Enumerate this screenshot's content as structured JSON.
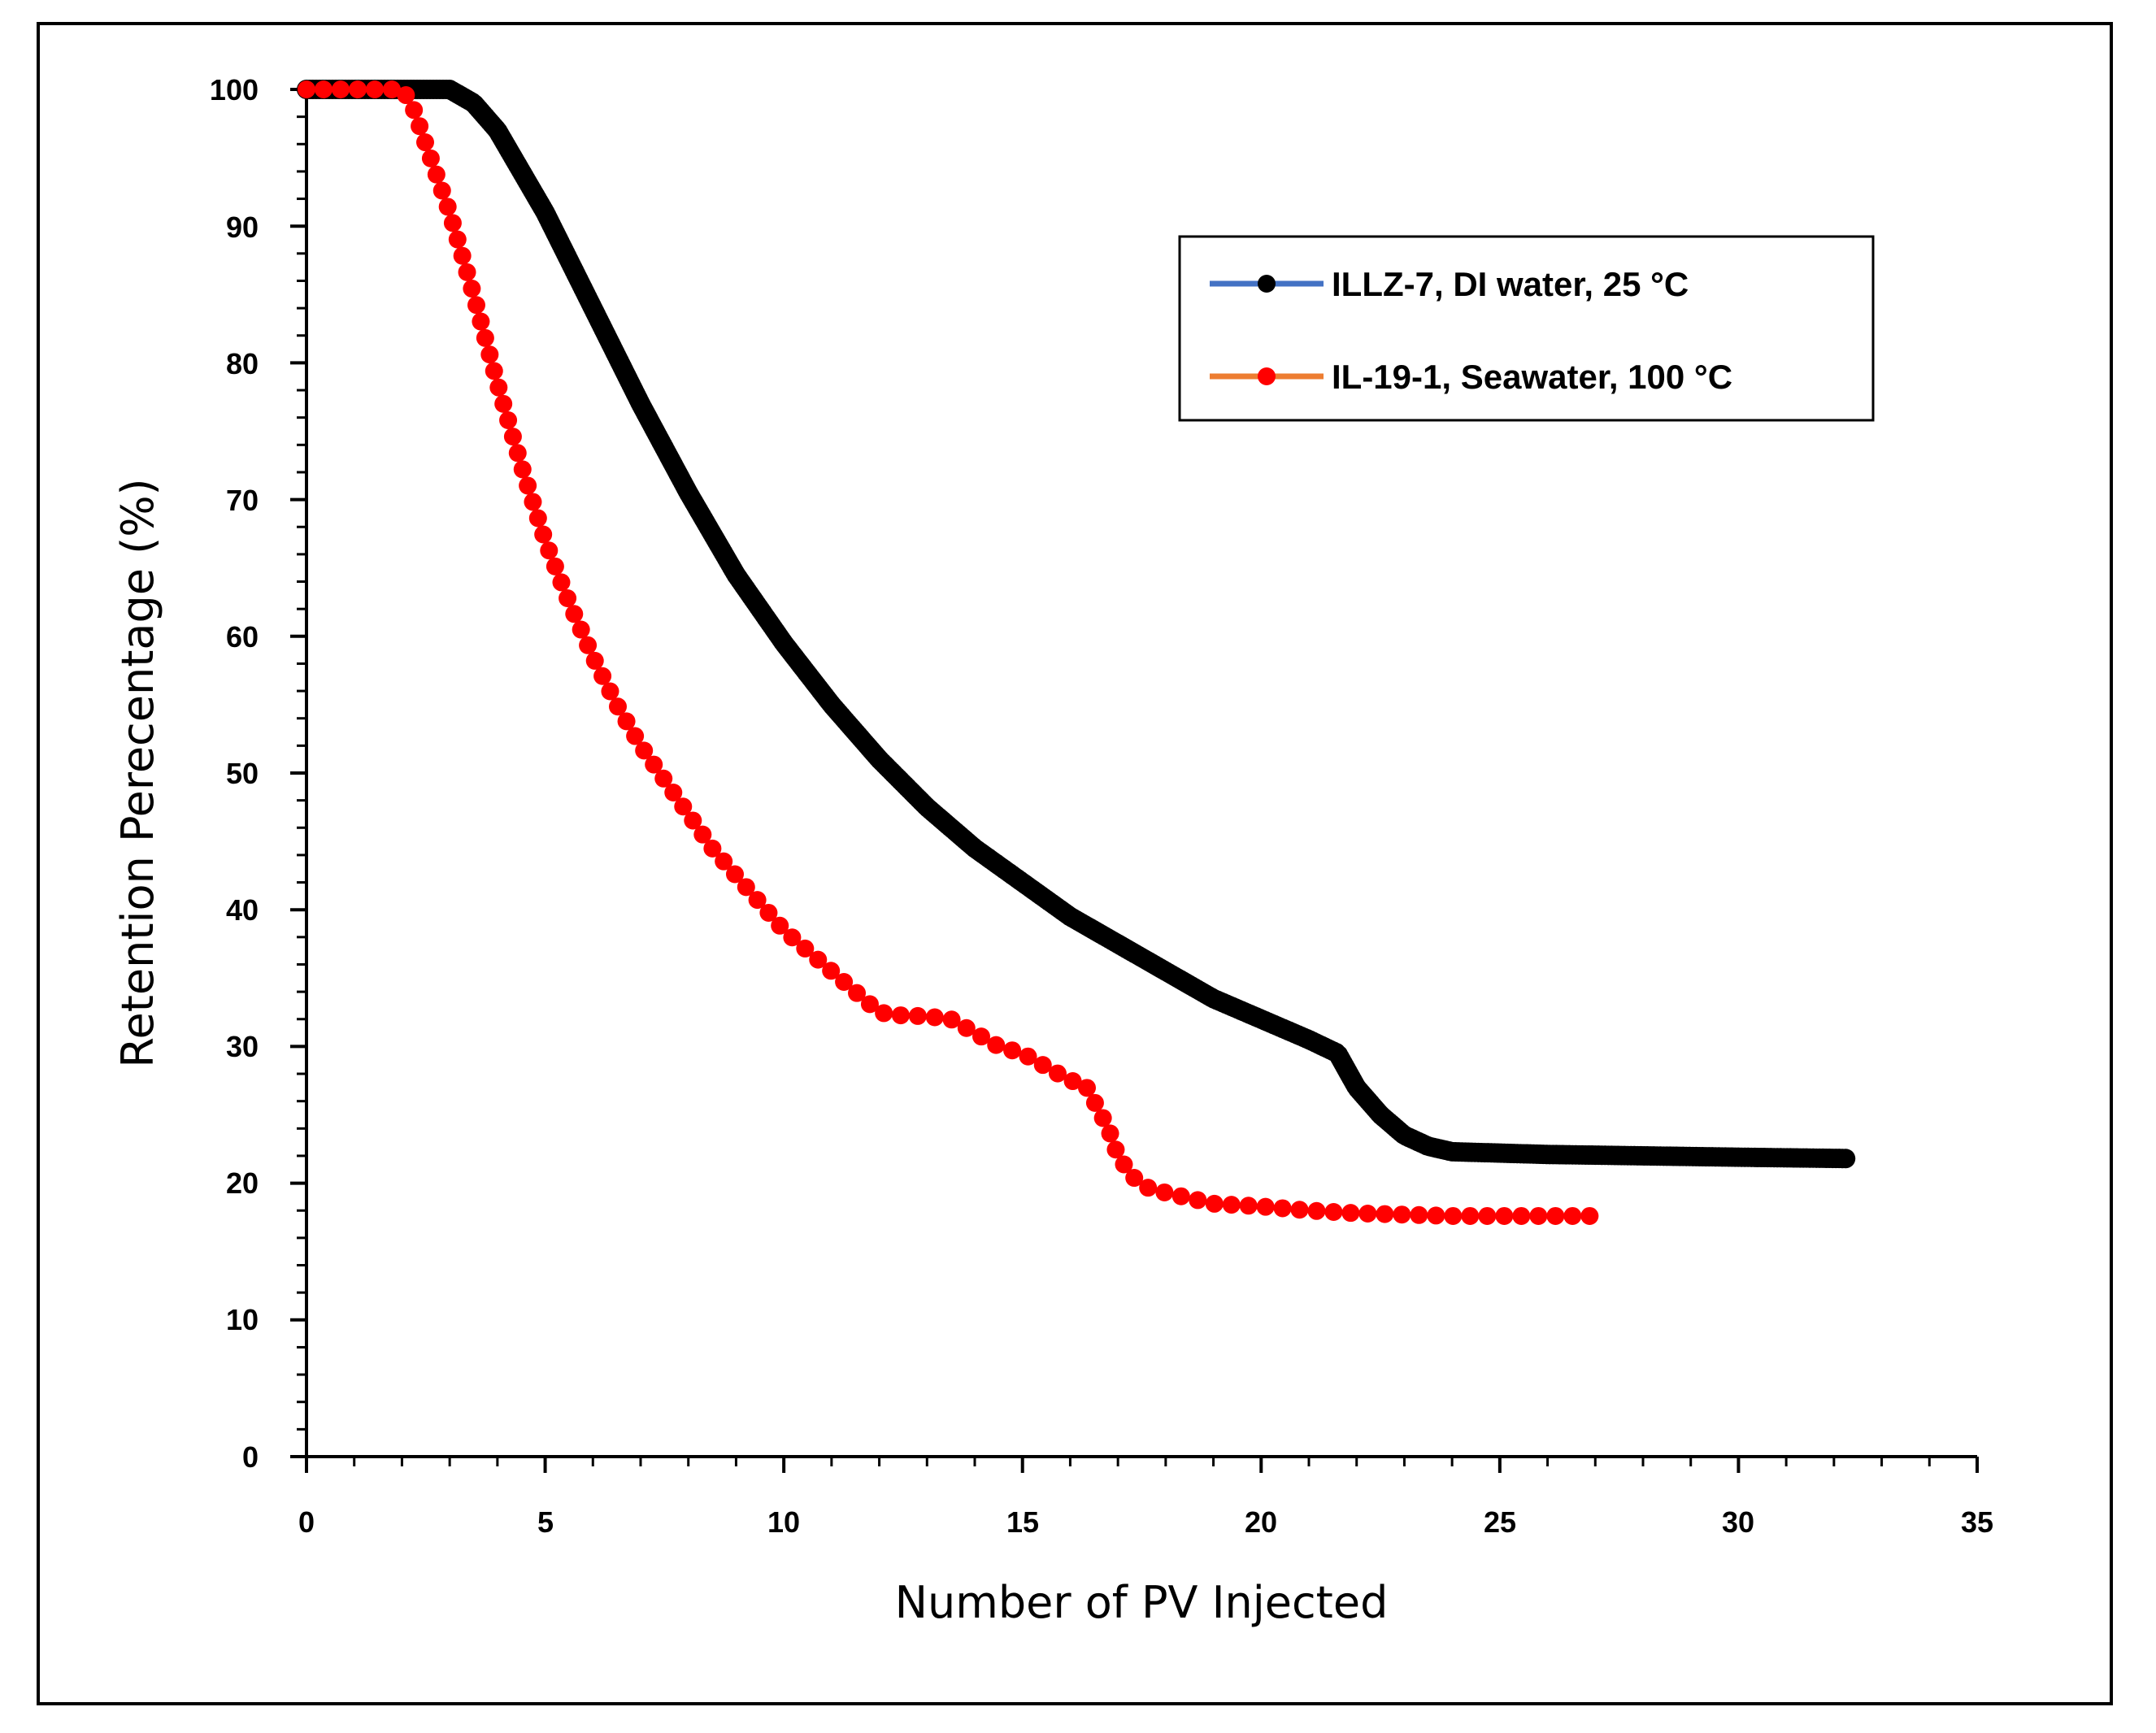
{
  "chart_data": {
    "type": "scatter",
    "title": "",
    "xlabel": "Number of PV Injected",
    "ylabel": "Retention Perecentage (%)",
    "xlim": [
      0,
      35
    ],
    "ylim": [
      0,
      100
    ],
    "x_ticks": [
      "0",
      "5",
      "10",
      "15",
      "20",
      "25",
      "30",
      "35"
    ],
    "y_ticks": [
      "0",
      "10",
      "20",
      "30",
      "40",
      "50",
      "60",
      "70",
      "80",
      "90",
      "100"
    ],
    "grid": false,
    "legend_position": "top-right",
    "series": [
      {
        "name": "ILLZ-7, DI water, 25 °C",
        "line_color": "#4472C4",
        "marker_color": "#000000",
        "x": [
          0,
          2,
          3,
          3.5,
          4,
          5,
          6,
          7,
          8,
          9,
          10,
          11,
          12,
          13,
          14,
          15,
          16,
          17,
          18,
          19,
          20,
          21,
          21.6,
          22,
          22.5,
          23,
          23.5,
          24,
          25,
          26,
          28,
          30,
          32.3
        ],
        "values": [
          100,
          100,
          100,
          99,
          97,
          91,
          84,
          77,
          70.5,
          64.5,
          59.5,
          55,
          51,
          47.5,
          44.5,
          42,
          39.5,
          37.5,
          35.5,
          33.5,
          32,
          30.5,
          29.5,
          27,
          25,
          23.5,
          22.7,
          22.3,
          22.2,
          22.1,
          22,
          21.9,
          21.8
        ]
      },
      {
        "name": "IL-19-1, Seawater, 100 °C",
        "line_color": "#ED7D31",
        "marker_color": "#FF0000",
        "x": [
          0,
          1,
          2,
          2.2,
          2.5,
          3,
          3.5,
          4,
          4.5,
          5,
          5.5,
          6,
          6.5,
          7,
          7.5,
          8,
          8.5,
          9,
          9.5,
          10,
          10.5,
          11,
          11.5,
          12,
          12.3,
          13,
          13.5,
          14,
          14.5,
          15,
          15.5,
          16,
          16.3,
          16.5,
          16.8,
          17,
          17.3,
          17.6,
          18,
          18.5,
          19,
          20,
          21,
          22,
          23,
          24,
          25,
          26,
          26.9
        ],
        "values": [
          100,
          100,
          100,
          99,
          96,
          91,
          85,
          78.5,
          72.5,
          67,
          62.5,
          58.5,
          55,
          52,
          49.5,
          47,
          44.5,
          42.5,
          40.5,
          38.5,
          37,
          35.5,
          34,
          32.5,
          32.3,
          32.2,
          32,
          31,
          30,
          29.5,
          28.5,
          27.5,
          27.3,
          26,
          24,
          22,
          20.5,
          19.7,
          19.3,
          18.9,
          18.5,
          18.3,
          18,
          17.8,
          17.7,
          17.6,
          17.6,
          17.6,
          17.6
        ]
      }
    ]
  }
}
